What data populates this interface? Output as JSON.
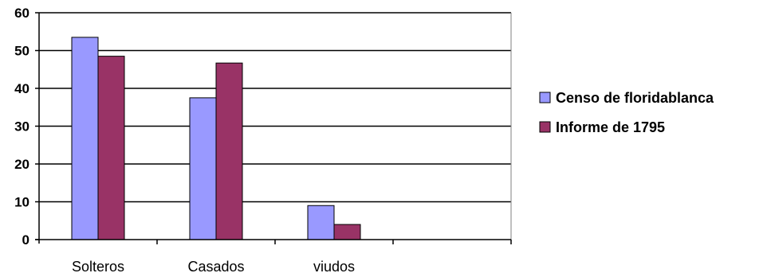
{
  "chart_data": {
    "type": "bar",
    "categories": [
      "Solteros",
      "Casados",
      "viudos",
      ""
    ],
    "series": [
      {
        "name": "Censo de floridablanca",
        "values": [
          53.5,
          37.5,
          9.0,
          null
        ],
        "color": "#9999ff"
      },
      {
        "name": "Informe de 1795",
        "values": [
          48.5,
          46.7,
          4.0,
          null
        ],
        "color": "#993366"
      }
    ],
    "ylim": [
      0,
      60
    ],
    "yticks": [
      0,
      10,
      20,
      30,
      40,
      50,
      60
    ],
    "grid": true,
    "legend_position": "right",
    "title": "",
    "xlabel": "",
    "ylabel": ""
  }
}
